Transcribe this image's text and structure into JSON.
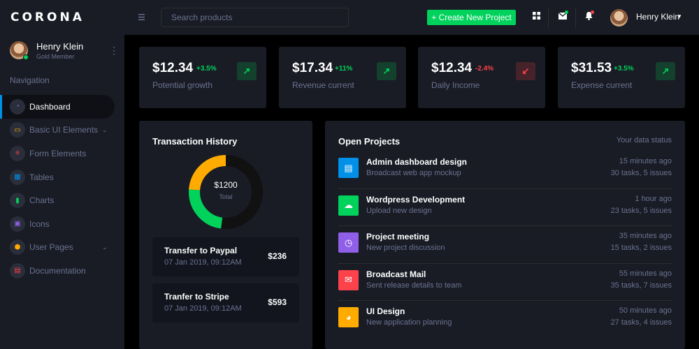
{
  "brand": "CORONA",
  "sidebar": {
    "profile": {
      "name": "Henry Klein",
      "role": "Gold Member"
    },
    "nav_heading": "Navigation",
    "items": [
      {
        "label": "Dashboard",
        "icon": "speedometer-icon",
        "color": "#8f5fe8",
        "active": true
      },
      {
        "label": "Basic UI Elements",
        "icon": "laptop-icon",
        "color": "#ffab00",
        "caret": true
      },
      {
        "label": "Form Elements",
        "icon": "playlist-icon",
        "color": "#fc424a"
      },
      {
        "label": "Tables",
        "icon": "table-icon",
        "color": "#0090e7"
      },
      {
        "label": "Charts",
        "icon": "chart-bar-icon",
        "color": "#00d25b"
      },
      {
        "label": "Icons",
        "icon": "contacts-icon",
        "color": "#8f5fe8"
      },
      {
        "label": "User Pages",
        "icon": "security-icon",
        "color": "#ffab00",
        "caret": true
      },
      {
        "label": "Documentation",
        "icon": "file-document-icon",
        "color": "#fc424a"
      }
    ]
  },
  "header": {
    "search_placeholder": "Search products",
    "create_button": "+ Create New Project",
    "user_name": "Henry Klein"
  },
  "stats": [
    {
      "value": "$12.34",
      "change": "+3.5%",
      "label": "Potential growth",
      "trend": "up"
    },
    {
      "value": "$17.34",
      "change": "+11%",
      "label": "Revenue current",
      "trend": "up"
    },
    {
      "value": "$12.34",
      "change": "-2.4%",
      "label": "Daily Income",
      "trend": "down"
    },
    {
      "value": "$31.53",
      "change": "+3.5%",
      "label": "Expense current",
      "trend": "up"
    }
  ],
  "transactions": {
    "title": "Transaction History",
    "donut": {
      "amount": "$1200",
      "label": "Total",
      "segments": [
        {
          "color": "#111111",
          "fraction": 0.52
        },
        {
          "color": "#00d25b",
          "fraction": 0.24
        },
        {
          "color": "#ffab00",
          "fraction": 0.24
        }
      ]
    },
    "items": [
      {
        "title": "Transfer to Paypal",
        "date": "07 Jan 2019, 09:12AM",
        "amount": "$236"
      },
      {
        "title": "Tranfer to Stripe",
        "date": "07 Jan 2019, 09:12AM",
        "amount": "$593"
      }
    ]
  },
  "projects": {
    "title": "Open Projects",
    "status": "Your data status",
    "items": [
      {
        "title": "Admin dashboard design",
        "subtitle": "Broadcast web app mockup",
        "time": "15 minutes ago",
        "tasks": "30 tasks, 5 issues",
        "color": "#0090e7",
        "icon": "file-icon"
      },
      {
        "title": "Wordpress Development",
        "subtitle": "Upload new design",
        "time": "1 hour ago",
        "tasks": "23 tasks, 5 issues",
        "color": "#00d25b",
        "icon": "cloud-download-icon"
      },
      {
        "title": "Project meeting",
        "subtitle": "New project discussion",
        "time": "35 minutes ago",
        "tasks": "15 tasks, 2 issues",
        "color": "#8f5fe8",
        "icon": "clock-icon"
      },
      {
        "title": "Broadcast Mail",
        "subtitle": "Sent release details to team",
        "time": "55 minutes ago",
        "tasks": "35 tasks, 7 issues",
        "color": "#fc424a",
        "icon": "email-open-icon"
      },
      {
        "title": "UI Design",
        "subtitle": "New application planning",
        "time": "50 minutes ago",
        "tasks": "27 tasks, 4 issues",
        "color": "#ffab00",
        "icon": "chart-pie-icon"
      }
    ]
  }
}
